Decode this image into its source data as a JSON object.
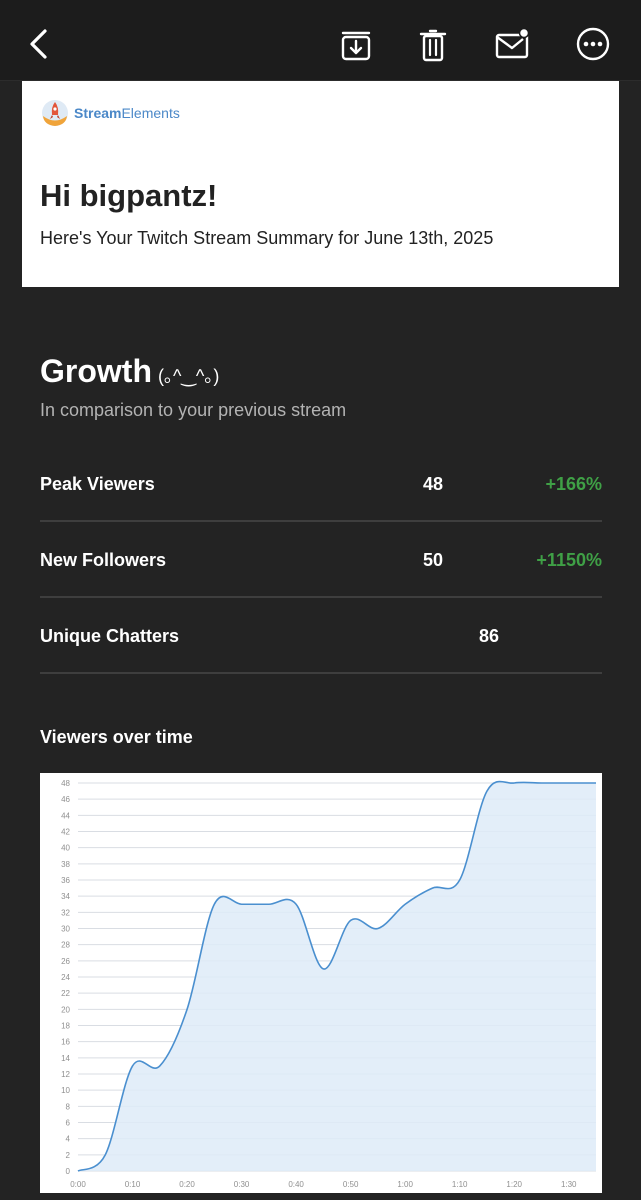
{
  "toolbar": {
    "back_icon": "chevron-left-icon",
    "archive_icon": "archive-download-icon",
    "delete_icon": "trash-icon",
    "unread_icon": "mail-unread-icon",
    "more_icon": "more-dots-icon"
  },
  "header": {
    "logo_text_bold": "Stream",
    "logo_text_rest": "Elements",
    "greeting": "Hi bigpantz!",
    "summary": "Here's Your Twitch Stream Summary for June 13th, 2025"
  },
  "growth": {
    "title": "Growth",
    "kaomoji": "(｡^‿^｡)",
    "subtitle": "In comparison to your previous stream",
    "stats": [
      {
        "label": "Peak Viewers",
        "value": "48",
        "change": "+166%"
      },
      {
        "label": "New Followers",
        "value": "50",
        "change": "+1150%"
      },
      {
        "label": "Unique Chatters",
        "value": "86",
        "change": ""
      }
    ]
  },
  "colors": {
    "positive": "#3fa046",
    "line": "#4a8fcf",
    "fill": "#deebf8",
    "brand": "#4b88c8"
  },
  "chart_section": {
    "title": "Viewers over time"
  },
  "chart_data": {
    "type": "area",
    "title": "Viewers over time",
    "xlabel": "",
    "ylabel": "",
    "x_ticks": [
      "0:00",
      "0:10",
      "0:20",
      "0:30",
      "0:40",
      "0:50",
      "1:00",
      "1:10",
      "1:20",
      "1:30"
    ],
    "y_ticks": [
      0,
      2,
      4,
      6,
      8,
      10,
      12,
      14,
      16,
      18,
      20,
      22,
      24,
      26,
      28,
      30,
      32,
      34,
      36,
      38,
      40,
      42,
      44,
      46,
      48
    ],
    "xlim": [
      0,
      95
    ],
    "ylim": [
      0,
      48
    ],
    "grid": true,
    "series": [
      {
        "x": [
          0,
          5,
          10,
          15,
          20,
          25,
          30,
          35,
          40,
          45,
          50,
          55,
          60,
          65,
          70,
          75,
          80,
          85,
          90,
          95
        ],
        "values": [
          0,
          2,
          13,
          13,
          20,
          33,
          33,
          33,
          33,
          25,
          31,
          30,
          33,
          35,
          36,
          47,
          48,
          48,
          48,
          48
        ]
      }
    ]
  }
}
